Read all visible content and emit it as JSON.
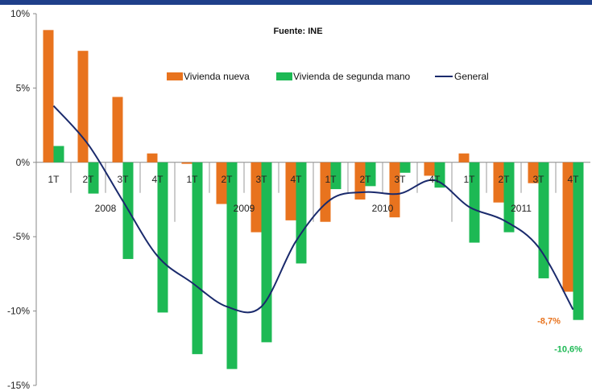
{
  "chart_data": {
    "type": "bar",
    "source_label": "Fuente: INE",
    "years": [
      "2008",
      "2009",
      "2010",
      "2011"
    ],
    "categories": [
      "1T",
      "2T",
      "3T",
      "4T",
      "1T",
      "2T",
      "3T",
      "4T",
      "1T",
      "2T",
      "3T",
      "4T",
      "1T",
      "2T",
      "3T",
      "4T"
    ],
    "series": [
      {
        "name": "Vivienda nueva",
        "color": "#e8731e",
        "values": [
          8.9,
          7.5,
          4.4,
          0.6,
          -0.1,
          -2.8,
          -4.7,
          -3.9,
          -4.0,
          -2.5,
          -3.7,
          -0.9,
          0.6,
          -2.7,
          -1.4,
          -8.7
        ]
      },
      {
        "name": "Vivienda de segunda mano",
        "color": "#1db954",
        "values": [
          1.1,
          -2.1,
          -6.5,
          -10.1,
          -12.9,
          -13.9,
          -12.1,
          -6.8,
          -1.8,
          -1.6,
          -0.7,
          -1.7,
          -5.4,
          -4.7,
          -7.8,
          -10.6
        ]
      },
      {
        "name": "General",
        "color": "#1a2a6c",
        "type": "line",
        "values": [
          3.8,
          1.2,
          -2.6,
          -6.3,
          -8.1,
          -9.7,
          -9.7,
          -5.3,
          -2.5,
          -2.0,
          -2.1,
          -1.2,
          -3.0,
          -3.9,
          -5.7,
          -9.9
        ]
      }
    ],
    "ylim": [
      -15,
      10
    ],
    "yticks": [
      10,
      5,
      0,
      -5,
      -10,
      -15
    ],
    "ytick_labels": [
      "10%",
      "5%",
      "0%",
      "-5%",
      "-10%",
      "-15%"
    ],
    "annotations": [
      {
        "text": "-8,7%",
        "series": "Vivienda nueva",
        "index": 15
      },
      {
        "text": "-10,6%",
        "series": "Vivienda de segunda mano",
        "index": 15
      }
    ],
    "grid": false,
    "legend_position": "top-center"
  }
}
